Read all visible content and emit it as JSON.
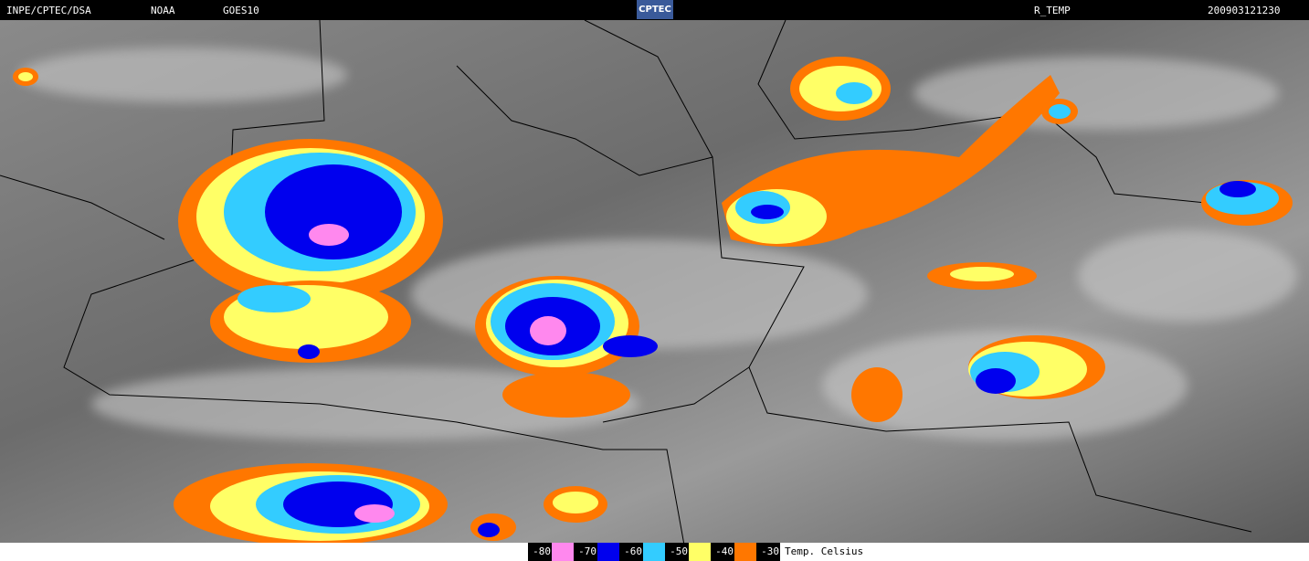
{
  "header": {
    "source": "INPE/CPTEC/DSA",
    "agency": "NOAA",
    "satellite": "GOES10",
    "logo": "CPTEC",
    "product": "R_TEMP",
    "timestamp": "200903121230"
  },
  "legend": {
    "items": [
      {
        "value": -80,
        "color": "#ff88ee"
      },
      {
        "value": -70,
        "color": "#0000ee"
      },
      {
        "value": -60,
        "color": "#33ccff"
      },
      {
        "value": -50,
        "color": "#ffff66"
      },
      {
        "value": -40,
        "color": "#ff7700"
      },
      {
        "value": -30,
        "color": null
      }
    ],
    "unit": "Temp. Celsius"
  }
}
